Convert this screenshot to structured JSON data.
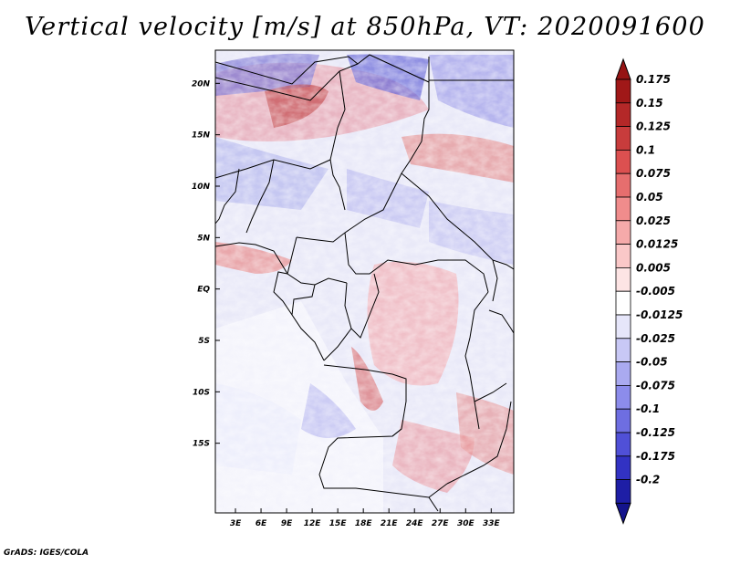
{
  "title": "Vertical velocity [m/s] at 850hPa, VT: 2020091600",
  "credit": "GrADS: IGES/COLA",
  "map": {
    "lat_range": [
      -20,
      25
    ],
    "lon_range": [
      0,
      35
    ],
    "lat_ticks": [
      {
        "value": 20,
        "label": "20N"
      },
      {
        "value": 15,
        "label": "15N"
      },
      {
        "value": 10,
        "label": "10N"
      },
      {
        "value": 5,
        "label": "5N"
      },
      {
        "value": 0,
        "label": "EQ"
      },
      {
        "value": -5,
        "label": "5S"
      },
      {
        "value": -10,
        "label": "10S"
      },
      {
        "value": -15,
        "label": "15S"
      }
    ],
    "lon_ticks": [
      {
        "value": 3,
        "label": "3E"
      },
      {
        "value": 6,
        "label": "6E"
      },
      {
        "value": 9,
        "label": "9E"
      },
      {
        "value": 12,
        "label": "12E"
      },
      {
        "value": 15,
        "label": "15E"
      },
      {
        "value": 18,
        "label": "18E"
      },
      {
        "value": 21,
        "label": "21E"
      },
      {
        "value": 24,
        "label": "24E"
      },
      {
        "value": 27,
        "label": "27E"
      },
      {
        "value": 30,
        "label": "30E"
      },
      {
        "value": 33,
        "label": "33E"
      }
    ]
  },
  "colorbar": {
    "levels": [
      {
        "label": "0.175",
        "color": "#a01818"
      },
      {
        "label": "0.15",
        "color": "#b42828"
      },
      {
        "label": "0.125",
        "color": "#c83c3c"
      },
      {
        "label": "0.1",
        "color": "#dc5050"
      },
      {
        "label": "0.075",
        "color": "#e66e6e"
      },
      {
        "label": "0.05",
        "color": "#f08c8c"
      },
      {
        "label": "0.025",
        "color": "#f5aaaa"
      },
      {
        "label": "0.0125",
        "color": "#fac8c8"
      },
      {
        "label": "0.005",
        "color": "#fde4e4"
      },
      {
        "label": "-0.005",
        "color": "#ffffff"
      },
      {
        "label": "-0.0125",
        "color": "#e6e6fa"
      },
      {
        "label": "-0.025",
        "color": "#c8c8f5"
      },
      {
        "label": "-0.05",
        "color": "#aaaaf0"
      },
      {
        "label": "-0.075",
        "color": "#8c8ceb"
      },
      {
        "label": "-0.1",
        "color": "#6e6ee1"
      },
      {
        "label": "-0.125",
        "color": "#5050d7"
      },
      {
        "label": "-0.175",
        "color": "#3232c3"
      },
      {
        "label": "-0.2",
        "color": "#1e1ea5"
      }
    ],
    "top_triangle_color": "#961414",
    "bottom_triangle_color": "#14148c"
  }
}
